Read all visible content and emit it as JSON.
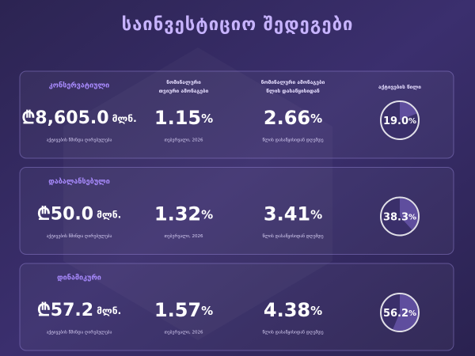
{
  "title": "საინვესტიციო შედეგები",
  "headers": {
    "monthly": [
      "ნომინალური",
      "თვიური ამონაგები"
    ],
    "ytd": [
      "ნომინალური ამონაგები",
      "წლის დასაწყისიდან"
    ],
    "share": "აქტივების წილი"
  },
  "captions": {
    "nav": "აქტივების წმინდა ღირებულება",
    "monthly": "თებერვალი, 2026",
    "ytd": "წლის დასაწყისიდან დღემდე"
  },
  "currency": "₾",
  "unit": "მლნ.",
  "percent": "%",
  "portfolios": [
    {
      "name": "კონსერვატიული",
      "nav": "8,605.0",
      "monthly": "1.15",
      "ytd": "2.66",
      "share": "19.0"
    },
    {
      "name": "დაბალანსებული",
      "nav": "50.0",
      "monthly": "1.32",
      "ytd": "3.41",
      "share": "38.3"
    },
    {
      "name": "დინამიკური",
      "nav": "57.2",
      "monthly": "1.57",
      "ytd": "4.38",
      "share": "56.2"
    }
  ]
}
